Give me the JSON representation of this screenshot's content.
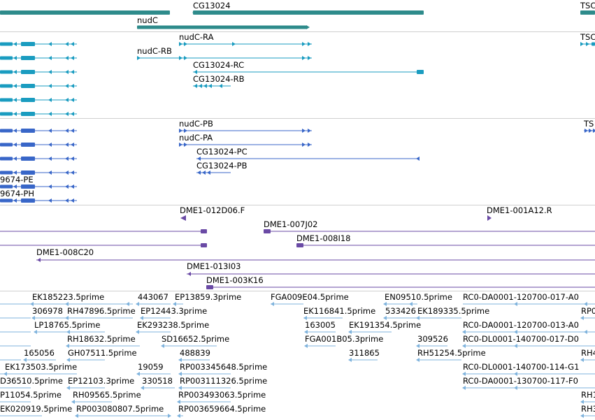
{
  "tracks": {
    "genes": {
      "colors": {
        "bar": "#2e8b8b"
      },
      "labels": [
        "CG13024",
        "nudC",
        "TSC"
      ]
    },
    "transcripts": {
      "colors": {
        "feature": "#1a9cc0"
      },
      "labels": [
        "nudC-RA",
        "nudC-RB",
        "CG13024-RC",
        "CG13024-RB",
        "TSC"
      ]
    },
    "proteins": {
      "colors": {
        "feature": "#3866c8"
      },
      "labels": [
        "nudC-PB",
        "nudC-PA",
        "CG13024-PC",
        "CG13024-PB",
        "TS",
        "9674-PE",
        "9674-PH"
      ]
    },
    "bac_ends": {
      "colors": {
        "feature": "#6a4aa5"
      },
      "labels": [
        "DME1-012D06.F",
        "DME1-001A12.R",
        "DME1-007J02",
        "DME1-008I18",
        "DME1-008C20",
        "DME1-013I03",
        "DME1-003K16"
      ]
    },
    "ests": {
      "colors": {
        "feature": "#7fb3dd"
      },
      "labels": [
        "EK185223.5prime",
        "443067",
        "EP13859.3prime",
        "FGA009E04.5prime",
        "EN09510.5prime",
        "RC0-DA0001-120700-017-A0",
        "306978",
        "RH47896.5prime",
        "EP12443.3prime",
        "EK116841.5prime",
        "533426",
        "EK189335.5prime",
        "RP0",
        "LP18765.5prime",
        "EK293238.5prime",
        "163005",
        "EK191354.5prime",
        "RC0-DA0001-120700-013-A0",
        "RH18632.5prime",
        "SD16652.5prime",
        "FGA001B05.3prime",
        "309526",
        "RC0-DL0001-140700-017-D0",
        "165056",
        "GH07511.5prime",
        "488839",
        "311865",
        "RH51254.5prime",
        "RH4",
        "EK173503.5prime",
        "19059",
        "RP003345648.5prime",
        "RC0-DL0001-140700-114-G1",
        "D36510.5prime",
        "EP12103.3prime",
        "330518",
        "RP003111326.5prime",
        "RC0-DA0001-130700-117-F0",
        "P11054.5prime",
        "RH09565.5prime",
        "RP003493063.5prime",
        "RH1",
        "EK020919.5prime",
        "RP003080807.5prime",
        "RP003659664.5prime",
        "RH3"
      ]
    }
  }
}
